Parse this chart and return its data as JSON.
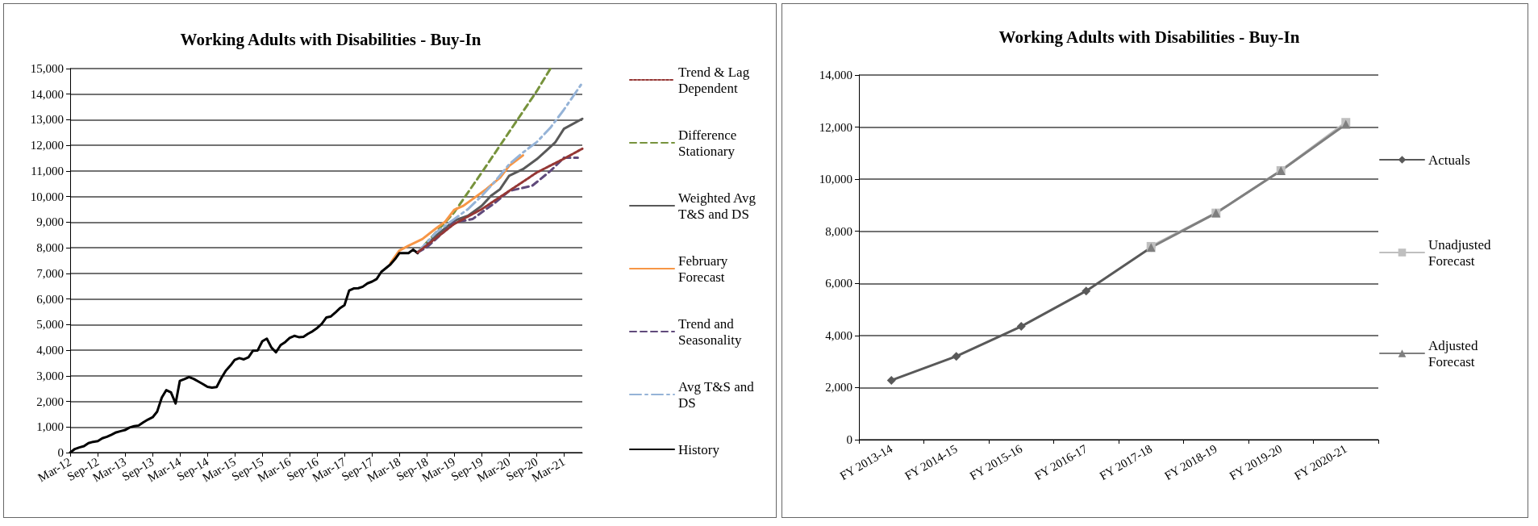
{
  "chart_data": [
    {
      "type": "line",
      "title": "Working Adults with Disabilities - Buy-In",
      "xlim": [
        "2012-03",
        "2021-07"
      ],
      "xticks": [
        {
          "value": "2012-03",
          "label": "Mar-12"
        },
        {
          "value": "2012-09",
          "label": "Sep-12"
        },
        {
          "value": "2013-03",
          "label": "Mar-13"
        },
        {
          "value": "2013-09",
          "label": "Sep-13"
        },
        {
          "value": "2014-03",
          "label": "Mar-14"
        },
        {
          "value": "2014-09",
          "label": "Sep-14"
        },
        {
          "value": "2015-03",
          "label": "Mar-15"
        },
        {
          "value": "2015-09",
          "label": "Sep-15"
        },
        {
          "value": "2016-03",
          "label": "Mar-16"
        },
        {
          "value": "2016-09",
          "label": "Sep-16"
        },
        {
          "value": "2017-03",
          "label": "Mar-17"
        },
        {
          "value": "2017-09",
          "label": "Sep-17"
        },
        {
          "value": "2018-03",
          "label": "Mar-18"
        },
        {
          "value": "2018-09",
          "label": "Sep-18"
        },
        {
          "value": "2019-03",
          "label": "Mar-19"
        },
        {
          "value": "2019-09",
          "label": "Sep-19"
        },
        {
          "value": "2020-03",
          "label": "Mar-20"
        },
        {
          "value": "2020-09",
          "label": "Sep-20"
        },
        {
          "value": "2021-03",
          "label": "Mar-21"
        }
      ],
      "ylim": [
        0,
        15000
      ],
      "yticks": [
        {
          "value": 0,
          "label": "0"
        },
        {
          "value": 1000,
          "label": "1,000"
        },
        {
          "value": 2000,
          "label": "2,000"
        },
        {
          "value": 3000,
          "label": "3,000"
        },
        {
          "value": 4000,
          "label": "4,000"
        },
        {
          "value": 5000,
          "label": "5,000"
        },
        {
          "value": 6000,
          "label": "6,000"
        },
        {
          "value": 7000,
          "label": "7,000"
        },
        {
          "value": 8000,
          "label": "8,000"
        },
        {
          "value": 9000,
          "label": "9,000"
        },
        {
          "value": 10000,
          "label": "10,000"
        },
        {
          "value": 11000,
          "label": "11,000"
        },
        {
          "value": 12000,
          "label": "12,000"
        },
        {
          "value": 13000,
          "label": "13,000"
        },
        {
          "value": 14000,
          "label": "14,000"
        },
        {
          "value": 15000,
          "label": "15,000"
        }
      ],
      "grid": "y",
      "legend": "right",
      "marker": "none",
      "series": [
        {
          "name": "Trend & Lag Dependent",
          "color": "#953735",
          "line_style": "dotted",
          "x": [
            "2018-07",
            "2019-03",
            "2019-09",
            "2020-03",
            "2020-09",
            "2021-03",
            "2021-07"
          ],
          "values": [
            7820,
            8930,
            9510,
            10220,
            10940,
            11480,
            11870
          ]
        },
        {
          "name": "Difference Stationary",
          "color": "#77933c",
          "line_style": "dashed",
          "x": [
            "2018-07",
            "2019-03",
            "2019-09",
            "2020-03",
            "2020-09",
            "2020-12"
          ],
          "values": [
            7820,
            9380,
            10940,
            12520,
            14120,
            15000
          ]
        },
        {
          "name": "Weighted Avg T&S and DS",
          "color": "#595959",
          "line_style": "solid",
          "x": [
            "2018-07",
            "2018-11",
            "2019-03",
            "2019-06",
            "2019-09",
            "2019-11",
            "2020-01",
            "2020-03",
            "2020-06",
            "2020-09",
            "2020-11",
            "2021-01",
            "2021-03",
            "2021-07"
          ],
          "values": [
            7820,
            8470,
            9060,
            9250,
            9640,
            10030,
            10290,
            10810,
            11070,
            11460,
            11780,
            12110,
            12650,
            13040
          ]
        },
        {
          "name": "February Forecast",
          "color": "#f79646",
          "line_style": "solid",
          "x": [
            "2018-01",
            "2018-03",
            "2018-05",
            "2018-08",
            "2018-11",
            "2019-01",
            "2019-03",
            "2019-05",
            "2019-07",
            "2019-10",
            "2020-01",
            "2020-03",
            "2020-06"
          ],
          "values": [
            7400,
            7890,
            8080,
            8340,
            8760,
            9020,
            9480,
            9640,
            9900,
            10290,
            10740,
            11200,
            11610
          ]
        },
        {
          "name": "Trend and Seasonality",
          "color": "#604a7b",
          "line_style": "dashed",
          "x": [
            "2018-07",
            "2018-09",
            "2019-03",
            "2019-07",
            "2019-12",
            "2020-03",
            "2020-08",
            "2020-12",
            "2021-03",
            "2021-06"
          ],
          "values": [
            7820,
            8020,
            8990,
            9120,
            9770,
            10220,
            10420,
            11000,
            11520,
            11520
          ]
        },
        {
          "name": "Avg T&S and DS",
          "color": "#95b3d7",
          "line_style": "dashdot",
          "x": [
            "2018-07",
            "2018-11",
            "2019-03",
            "2019-06",
            "2019-09",
            "2019-12",
            "2020-03",
            "2020-06",
            "2020-09",
            "2020-12",
            "2021-03",
            "2021-07"
          ],
          "values": [
            7820,
            8600,
            9120,
            9510,
            10030,
            10610,
            11260,
            11720,
            12130,
            12690,
            13400,
            14440
          ]
        },
        {
          "name": "History",
          "color": "#000000",
          "line_style": "solid",
          "x": [
            "2012-03",
            "2012-04",
            "2012-05",
            "2012-06",
            "2012-07",
            "2012-08",
            "2012-09",
            "2012-10",
            "2012-11",
            "2012-12",
            "2013-01",
            "2013-02",
            "2013-03",
            "2013-04",
            "2013-05",
            "2013-06",
            "2013-07",
            "2013-08",
            "2013-09",
            "2013-10",
            "2013-11",
            "2013-12",
            "2014-01",
            "2014-02",
            "2014-03",
            "2014-04",
            "2014-05",
            "2014-06",
            "2014-07",
            "2014-08",
            "2014-09",
            "2014-10",
            "2014-11",
            "2014-12",
            "2015-01",
            "2015-02",
            "2015-03",
            "2015-04",
            "2015-05",
            "2015-06",
            "2015-07",
            "2015-08",
            "2015-09",
            "2015-10",
            "2015-11",
            "2015-12",
            "2016-01",
            "2016-02",
            "2016-03",
            "2016-04",
            "2016-05",
            "2016-06",
            "2016-07",
            "2016-08",
            "2016-09",
            "2016-10",
            "2016-11",
            "2016-12",
            "2017-01",
            "2017-02",
            "2017-03",
            "2017-04",
            "2017-05",
            "2017-06",
            "2017-07",
            "2017-08",
            "2017-09",
            "2017-10",
            "2017-11",
            "2017-12",
            "2018-01",
            "2018-02",
            "2018-03",
            "2018-04",
            "2018-05",
            "2018-06",
            "2018-07"
          ],
          "values": [
            0,
            140,
            200,
            250,
            370,
            420,
            450,
            560,
            620,
            700,
            790,
            840,
            880,
            980,
            1030,
            1060,
            1180,
            1290,
            1380,
            1600,
            2150,
            2440,
            2350,
            1920,
            2800,
            2870,
            2950,
            2880,
            2780,
            2680,
            2570,
            2540,
            2560,
            2900,
            3200,
            3400,
            3620,
            3690,
            3640,
            3720,
            3980,
            3990,
            4350,
            4450,
            4100,
            3920,
            4200,
            4320,
            4480,
            4560,
            4510,
            4520,
            4640,
            4740,
            4870,
            5030,
            5280,
            5320,
            5480,
            5650,
            5760,
            6330,
            6410,
            6420,
            6480,
            6610,
            6680,
            6780,
            7060,
            7200,
            7350,
            7560,
            7790,
            7790,
            7790,
            7930,
            7790
          ]
        }
      ]
    },
    {
      "type": "line",
      "title": "Working Adults with Disabilities - Buy-In",
      "categories": [
        "FY 2013-14",
        "FY 2014-15",
        "FY 2015-16",
        "FY 2016-17",
        "FY 2017-18",
        "FY 2018-19",
        "FY 2019-20",
        "FY 2020-21"
      ],
      "ylim": [
        0,
        14000
      ],
      "yticks": [
        {
          "value": 0,
          "label": "0"
        },
        {
          "value": 2000,
          "label": "2,000"
        },
        {
          "value": 4000,
          "label": "4,000"
        },
        {
          "value": 6000,
          "label": "6,000"
        },
        {
          "value": 8000,
          "label": "8,000"
        },
        {
          "value": 10000,
          "label": "10,000"
        },
        {
          "value": 12000,
          "label": "12,000"
        },
        {
          "value": 14000,
          "label": "14,000"
        }
      ],
      "grid": "y",
      "legend": "right",
      "series": [
        {
          "name": "Actuals",
          "color": "#595959",
          "marker": "diamond",
          "values": [
            2280,
            3200,
            4350,
            5710,
            7380,
            null,
            null,
            null
          ]
        },
        {
          "name": "Unadjusted Forecast",
          "color": "#bfbfbf",
          "marker": "square",
          "values": [
            null,
            null,
            null,
            null,
            7420,
            8700,
            10330,
            12180
          ]
        },
        {
          "name": "Adjusted Forecast",
          "color": "#7f7f7f",
          "marker": "triangle",
          "values": [
            null,
            null,
            null,
            null,
            7380,
            8700,
            10330,
            12110
          ]
        }
      ]
    }
  ]
}
